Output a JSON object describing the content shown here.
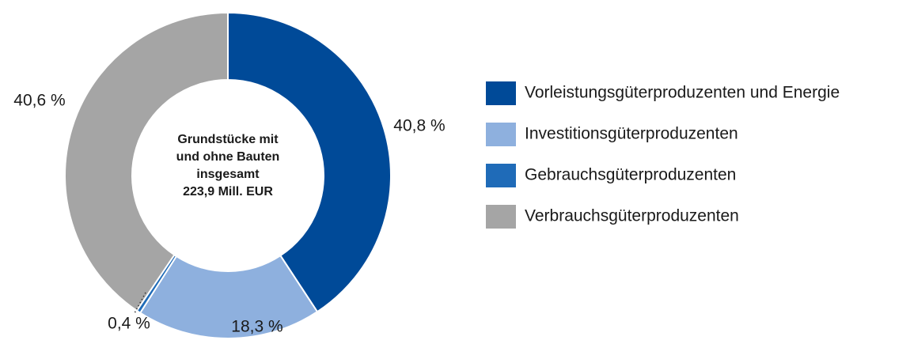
{
  "chart_data": {
    "type": "donut",
    "center_text": [
      "Grundstücke mit",
      "und ohne Bauten",
      "insgesamt",
      "223,9 Mill. EUR"
    ],
    "categories": [
      "Vorleistungsgüterproduzenten und Energie",
      "Investitionsgüterproduzenten",
      "Gebrauchsgüterproduzenten",
      "Verbrauchsgüterproduzenten"
    ],
    "values": [
      40.8,
      18.3,
      0.4,
      40.6
    ],
    "value_labels": [
      "40,8 %",
      "18,3 %",
      "0,4 %",
      "40,6 %"
    ],
    "colors": [
      "#004a98",
      "#8eb0de",
      "#1f6bb8",
      "#a5a5a5"
    ],
    "legend": "right"
  }
}
